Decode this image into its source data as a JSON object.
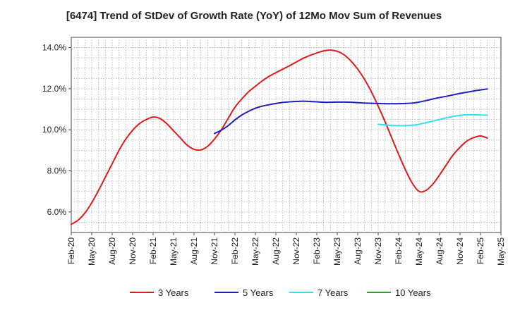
{
  "chart_data": {
    "type": "line",
    "title": "[6474]  Trend of StDev of Growth Rate (YoY) of 12Mo Mov Sum of Revenues",
    "xlabel": "",
    "ylabel": "",
    "ylim": [
      5.0,
      14.5
    ],
    "y_ticks": [
      6.0,
      8.0,
      10.0,
      12.0,
      14.0
    ],
    "y_tick_format": "percent_1dp",
    "grid": true,
    "legend_position": "bottom",
    "x_tick_labels": [
      "Feb-20",
      "May-20",
      "Aug-20",
      "Nov-20",
      "Feb-21",
      "May-21",
      "Aug-21",
      "Nov-21",
      "Feb-22",
      "May-22",
      "Aug-22",
      "Nov-22",
      "Feb-23",
      "May-23",
      "Aug-23",
      "Nov-23",
      "Feb-24",
      "May-24",
      "Aug-24",
      "Nov-24",
      "Feb-25",
      "May-25"
    ],
    "x_months_total": 63,
    "series": [
      {
        "name": "3 Years",
        "color": "#e31a1c",
        "start_month": 0,
        "values": [
          5.4,
          5.6,
          5.95,
          6.45,
          7.05,
          7.7,
          8.35,
          9.0,
          9.55,
          9.98,
          10.3,
          10.5,
          10.62,
          10.55,
          10.3,
          9.95,
          9.6,
          9.25,
          9.05,
          9.02,
          9.2,
          9.55,
          10.0,
          10.55,
          11.1,
          11.5,
          11.85,
          12.12,
          12.38,
          12.6,
          12.78,
          12.95,
          13.12,
          13.3,
          13.48,
          13.62,
          13.74,
          13.84,
          13.88,
          13.82,
          13.65,
          13.35,
          12.95,
          12.45,
          11.85,
          11.15,
          10.4,
          9.6,
          8.8,
          8.05,
          7.4,
          7.0,
          7.05,
          7.35,
          7.8,
          8.3,
          8.78,
          9.15,
          9.45,
          9.62,
          9.7,
          9.6
        ]
      },
      {
        "name": "5 Years",
        "color": "#1f1fbf",
        "start_month": 21,
        "values": [
          9.82,
          9.98,
          10.2,
          10.48,
          10.72,
          10.9,
          11.05,
          11.15,
          11.22,
          11.28,
          11.33,
          11.36,
          11.38,
          11.39,
          11.38,
          11.36,
          11.34,
          11.34,
          11.35,
          11.35,
          11.34,
          11.32,
          11.3,
          11.29,
          11.28,
          11.27,
          11.27,
          11.27,
          11.28,
          11.3,
          11.35,
          11.42,
          11.5,
          11.57,
          11.63,
          11.7,
          11.77,
          11.83,
          11.89,
          11.94,
          11.99
        ]
      },
      {
        "name": "7 Years",
        "color": "#33e0f0",
        "start_month": 45,
        "values": [
          10.27,
          10.24,
          10.21,
          10.2,
          10.2,
          10.22,
          10.27,
          10.34,
          10.42,
          10.5,
          10.58,
          10.65,
          10.7,
          10.73,
          10.73,
          10.72,
          10.71
        ]
      },
      {
        "name": "10 Years",
        "color": "#2ca02c",
        "start_month": null,
        "values": []
      }
    ]
  }
}
